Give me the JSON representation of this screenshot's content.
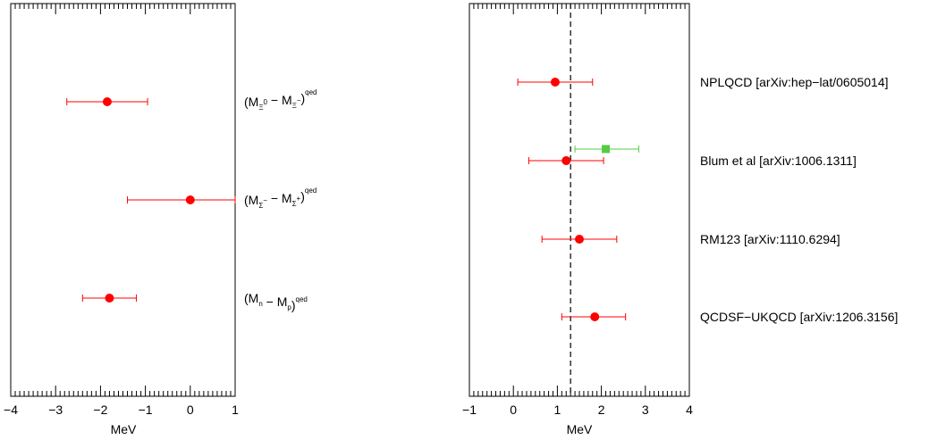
{
  "chart_data": [
    {
      "type": "scatter",
      "xlabel": "MeV",
      "xlim": [
        -4,
        1
      ],
      "x_ticks": [
        "−4",
        "−3",
        "−2",
        "−1",
        "0",
        "1"
      ],
      "points": [
        {
          "x": -1.85,
          "xerr_low": -2.75,
          "xerr_high": -0.95,
          "marker": "circle",
          "color": "#ff0000",
          "label": [
            {
              "t": "(M"
            },
            {
              "t": "Ξ",
              "s": "sub"
            },
            {
              "t": "0",
              "s": "sup2"
            },
            {
              "t": " − M"
            },
            {
              "t": "Ξ",
              "s": "sub"
            },
            {
              "t": "−",
              "s": "sup2"
            },
            {
              "t": ")"
            },
            {
              "t": "qed",
              "s": "sup"
            }
          ]
        },
        {
          "x": 0.0,
          "xerr_low": -1.4,
          "xerr_high": 1.0,
          "marker": "circle",
          "color": "#ff0000",
          "label": [
            {
              "t": "(M"
            },
            {
              "t": "Σ",
              "s": "sub"
            },
            {
              "t": "−",
              "s": "sup2"
            },
            {
              "t": " − M"
            },
            {
              "t": "Σ",
              "s": "sub"
            },
            {
              "t": "+",
              "s": "sup2"
            },
            {
              "t": ")"
            },
            {
              "t": "qed",
              "s": "sup"
            }
          ]
        },
        {
          "x": -1.8,
          "xerr_low": -2.4,
          "xerr_high": -1.2,
          "marker": "circle",
          "color": "#ff0000",
          "label": [
            {
              "t": "(M"
            },
            {
              "t": "n",
              "s": "sub"
            },
            {
              "t": " − M"
            },
            {
              "t": "p",
              "s": "sub"
            },
            {
              "t": ")"
            },
            {
              "t": "qed",
              "s": "sup"
            }
          ]
        }
      ]
    },
    {
      "type": "scatter",
      "xlabel": "MeV",
      "xlim": [
        -1,
        4
      ],
      "x_ticks": [
        "−1",
        "0",
        "1",
        "2",
        "3",
        "4"
      ],
      "reference_line": {
        "x": 1.3,
        "style": "dashed",
        "color": "#000000"
      },
      "points": [
        {
          "x": 0.95,
          "xerr_low": 0.1,
          "xerr_high": 1.8,
          "marker": "circle",
          "color": "#ff0000",
          "label": "NPLQCD [arXiv:hep−lat/0605014]"
        },
        {
          "x": 2.1,
          "xerr_low": 1.4,
          "xerr_high": 2.85,
          "marker": "square",
          "color": "#55cc44",
          "label": "",
          "row": 1,
          "offset": -1
        },
        {
          "x": 1.2,
          "xerr_low": 0.35,
          "xerr_high": 2.05,
          "marker": "circle",
          "color": "#ff0000",
          "label": "Blum et al [arXiv:1006.1311]"
        },
        {
          "x": 1.5,
          "xerr_low": 0.65,
          "xerr_high": 2.35,
          "marker": "circle",
          "color": "#ff0000",
          "label": "RM123 [arXiv:1110.6294]"
        },
        {
          "x": 1.85,
          "xerr_low": 1.1,
          "xerr_high": 2.55,
          "marker": "circle",
          "color": "#ff0000",
          "label": "QCDSF−UKQCD [arXiv:1206.3156]"
        }
      ]
    }
  ]
}
